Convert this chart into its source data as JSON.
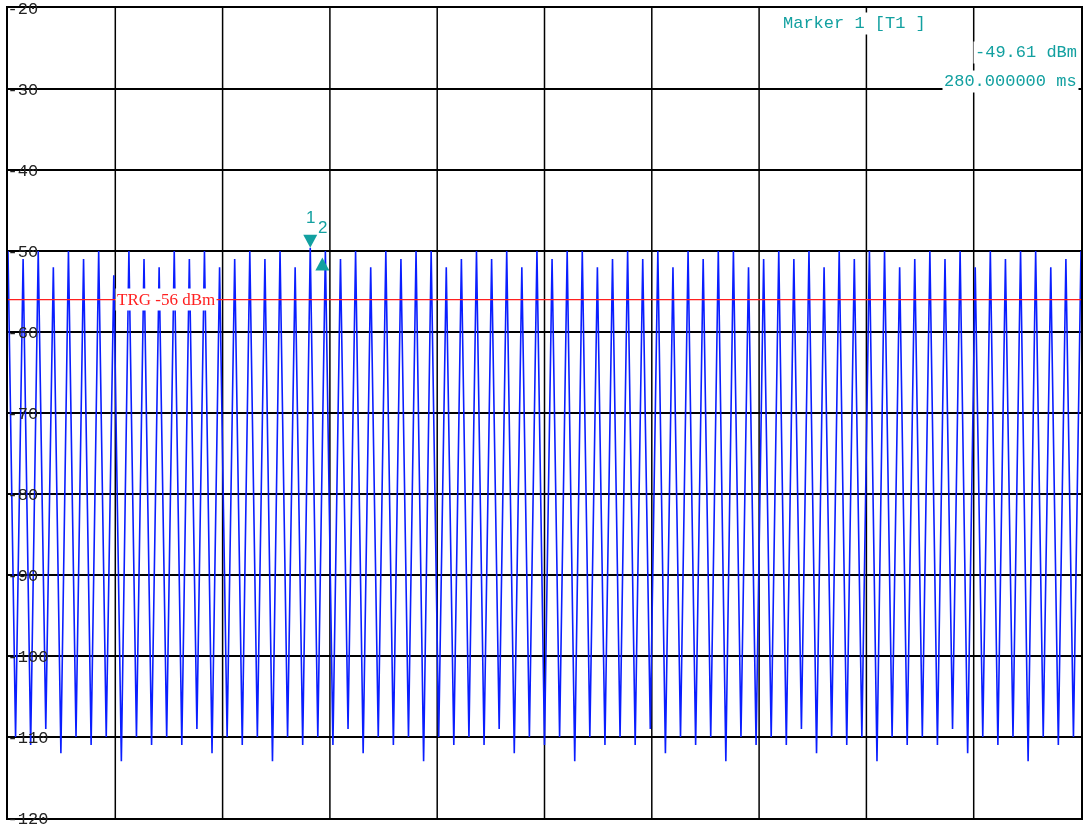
{
  "chart_data": {
    "type": "line",
    "categories": [
      null,
      null,
      null,
      null,
      null,
      null,
      null,
      null,
      null,
      null,
      null,
      null,
      null,
      null,
      null,
      null,
      null,
      null,
      null,
      null,
      null,
      null,
      null,
      null,
      null,
      null,
      null,
      null,
      null,
      null,
      null,
      null,
      null,
      null,
      null,
      null,
      null,
      null,
      null,
      null,
      null,
      null,
      null,
      null,
      null,
      null,
      null,
      null,
      null,
      null,
      null,
      null,
      null,
      null,
      null,
      null,
      null,
      null,
      null,
      null,
      null,
      null,
      null,
      null,
      null,
      null,
      null,
      null,
      null,
      null,
      null,
      null,
      null,
      null,
      null,
      null,
      null,
      null,
      null,
      null,
      null,
      null,
      null,
      null,
      null,
      null,
      null,
      null,
      null,
      null,
      null,
      null,
      null,
      null,
      null,
      null,
      null,
      null,
      null,
      null,
      null,
      null,
      null,
      null,
      null,
      null,
      null,
      null,
      null,
      null,
      null,
      null,
      null,
      null,
      null,
      null,
      null,
      null,
      null,
      null,
      null,
      null,
      null,
      null,
      null,
      null,
      null,
      null,
      null,
      null,
      null,
      null,
      null,
      null,
      null,
      null,
      null,
      null,
      null,
      null,
      null,
      null,
      null
    ],
    "ylim": [
      -120,
      -20
    ],
    "yticks": [
      -20,
      -30,
      -40,
      -50,
      -60,
      -70,
      -80,
      -90,
      -100,
      -110,
      -120
    ],
    "grid": true,
    "series": [
      {
        "color": "#0a1eff",
        "values": [
          -50,
          -110,
          -51,
          -111,
          -50,
          -109,
          -52,
          -112,
          -50,
          -110,
          -51,
          -111,
          -50,
          -110,
          -53,
          -113,
          -50,
          -110,
          -51,
          -111,
          -52,
          -110,
          -50,
          -111,
          -51,
          -109,
          -50,
          -112,
          -52,
          -110,
          -51,
          -111,
          -50,
          -110,
          -51,
          -113,
          -50,
          -110,
          -52,
          -111,
          -49.6,
          -110,
          -50,
          -111,
          -51,
          -109,
          -50,
          -112,
          -52,
          -110,
          -50,
          -111,
          -51,
          -110,
          -50,
          -113,
          -50,
          -110,
          -52,
          -111,
          -51,
          -110,
          -50,
          -111,
          -51,
          -109,
          -50,
          -112,
          -52,
          -110,
          -50,
          -111,
          -51,
          -110,
          -50,
          -113,
          -50,
          -110,
          -52,
          -111,
          -51,
          -110,
          -50,
          -111,
          -51,
          -109,
          -50,
          -112,
          -52,
          -110,
          -50,
          -111,
          -51,
          -110,
          -50,
          -113,
          -50,
          -110,
          -52,
          -111,
          -51,
          -110,
          -50,
          -111,
          -51,
          -109,
          -50,
          -112,
          -52,
          -110,
          -50,
          -111,
          -51,
          -110,
          -50,
          -113,
          -50,
          -110,
          -52,
          -111,
          -51,
          -110,
          -50,
          -111,
          -51,
          -109,
          -50,
          -112,
          -52,
          -110,
          -50,
          -111,
          -51,
          -110,
          -50,
          -113,
          -50,
          -110,
          -52,
          -111,
          -51,
          -110,
          -50
        ]
      }
    ],
    "ref_lines": [
      {
        "axis": "y",
        "value": -56,
        "label": "TRG -56 dBm",
        "color": "#ff2020"
      }
    ],
    "annotations": [
      "Marker 1 [T1 ]",
      "-49.61 dBm",
      "280.000000 ms",
      "1",
      "2"
    ]
  }
}
